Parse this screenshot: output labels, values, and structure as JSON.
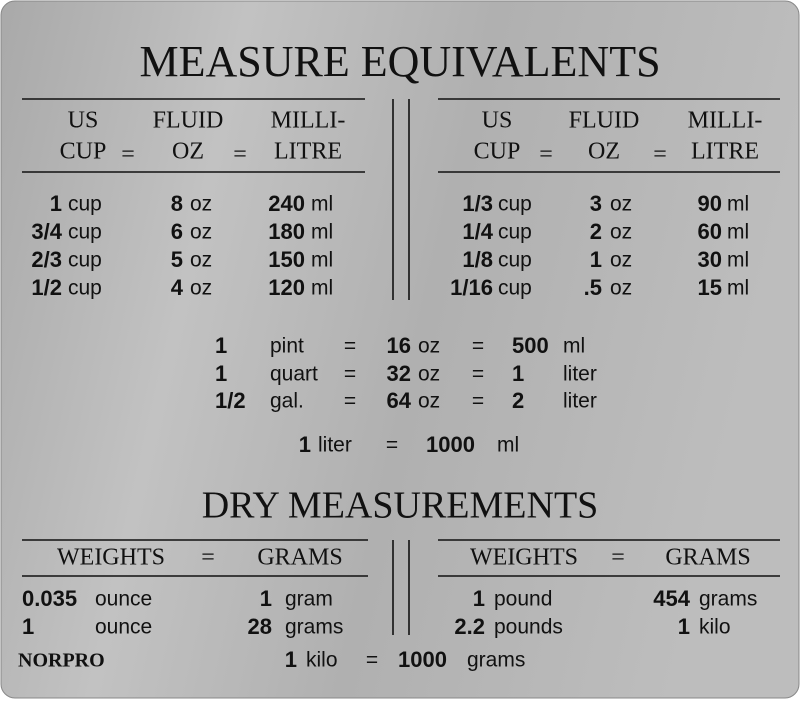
{
  "title": "MEASURE EQUIVALENTS",
  "liquid": {
    "headers": [
      [
        "US",
        "CUP"
      ],
      [
        "FLUID",
        "OZ"
      ],
      [
        "MILLI-",
        "LITRE"
      ]
    ],
    "equals": "=",
    "left": [
      [
        "1",
        "cup",
        "8",
        "oz",
        "240",
        "ml"
      ],
      [
        "3/4",
        "cup",
        "6",
        "oz",
        "180",
        "ml"
      ],
      [
        "2/3",
        "cup",
        "5",
        "oz",
        "150",
        "ml"
      ],
      [
        "1/2",
        "cup",
        "4",
        "oz",
        "120",
        "ml"
      ]
    ],
    "right": [
      [
        "1/3",
        "cup",
        "3",
        "oz",
        "90",
        "ml"
      ],
      [
        "1/4",
        "cup",
        "2",
        "oz",
        "60",
        "ml"
      ],
      [
        "1/8",
        "cup",
        "1",
        "oz",
        "30",
        "ml"
      ],
      [
        "1/16",
        "cup",
        ".5",
        "oz",
        "15",
        "ml"
      ]
    ],
    "middle": [
      [
        "1",
        "pint",
        "=",
        "16",
        "oz",
        "=",
        "500",
        "ml"
      ],
      [
        "1",
        "quart",
        "=",
        "32",
        "oz",
        "=",
        "1",
        "liter"
      ],
      [
        "1/2",
        "gal.",
        "=",
        "64",
        "oz",
        "=",
        "2",
        "liter"
      ]
    ],
    "liter_row": [
      "1",
      "liter",
      "=",
      "1000",
      "ml"
    ]
  },
  "dry": {
    "title": "DRY MEASUREMENTS",
    "headers": [
      "WEIGHTS",
      "=",
      "GRAMS"
    ],
    "left": [
      [
        "0.035",
        "ounce",
        "1",
        "gram"
      ],
      [
        "1",
        "ounce",
        "28",
        "grams"
      ]
    ],
    "right": [
      [
        "1",
        "pound",
        "454",
        "grams"
      ],
      [
        "2.2",
        "pounds",
        "1",
        "kilo"
      ]
    ],
    "bottom_row": [
      "1",
      "kilo",
      "=",
      "1000",
      "grams"
    ]
  },
  "brand": "NORPRO"
}
